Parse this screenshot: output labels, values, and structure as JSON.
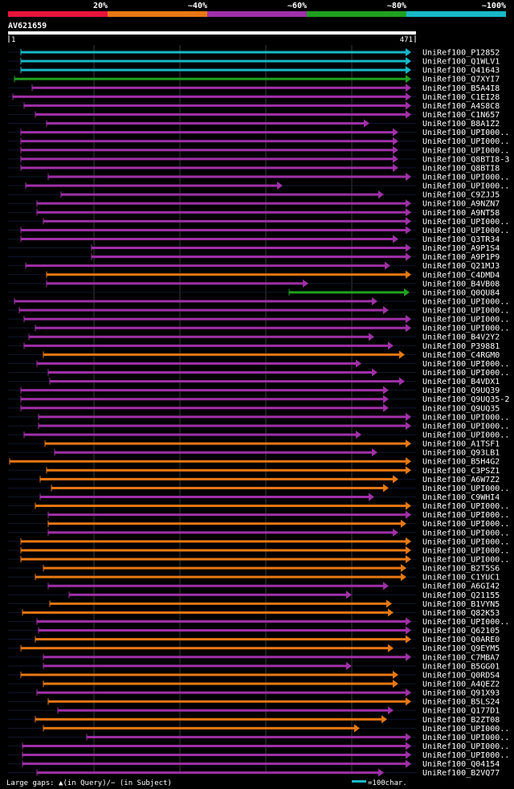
{
  "colors": {
    "bg": "#000000",
    "red": "#e8143c",
    "orange": "#e87814",
    "purple": "#a030a8",
    "green": "#20a020",
    "cyan": "#18b8c8",
    "grid": "#3a3a3a"
  },
  "scale_labels": [
    "20%",
    "~40%",
    "~60%",
    "~80%",
    "~100%"
  ],
  "query_name": "AV621659",
  "ruler": {
    "start": "1",
    "end": "471"
  },
  "footer": {
    "legend": "Large gaps: ▲(in Query)/− (in Subject)",
    "scale_note": "=100char."
  },
  "hits": [
    {
      "name": "UniRef100_P12852",
      "color": "cyan",
      "start": 26,
      "end": 512
    },
    {
      "name": "UniRef100_Q1WLV1",
      "color": "cyan",
      "start": 26,
      "end": 512
    },
    {
      "name": "UniRef100_Q41643",
      "color": "cyan",
      "start": 26,
      "end": 512
    },
    {
      "name": "UniRef100_Q7XYI7",
      "color": "green",
      "start": 18,
      "end": 512
    },
    {
      "name": "UniRef100_B5A4I8",
      "color": "purple",
      "start": 40,
      "end": 512
    },
    {
      "name": "UniRef100_C1EI28",
      "color": "purple",
      "start": 16,
      "end": 512
    },
    {
      "name": "UniRef100_A4S8C8",
      "color": "purple",
      "start": 30,
      "end": 512
    },
    {
      "name": "UniRef100_C1N657",
      "color": "purple",
      "start": 44,
      "end": 512
    },
    {
      "name": "UniRef100_B8A1Z2",
      "color": "purple",
      "start": 58,
      "end": 460
    },
    {
      "name": "UniRef100_UPI000..",
      "color": "purple",
      "start": 26,
      "end": 496
    },
    {
      "name": "UniRef100_UPI000..",
      "color": "purple",
      "start": 26,
      "end": 496
    },
    {
      "name": "UniRef100_UPI000..",
      "color": "purple",
      "start": 26,
      "end": 496
    },
    {
      "name": "UniRef100_Q8BTI8-3",
      "color": "purple",
      "start": 26,
      "end": 496
    },
    {
      "name": "UniRef100_Q8BTI8",
      "color": "purple",
      "start": 26,
      "end": 496
    },
    {
      "name": "UniRef100_UPI000..",
      "color": "purple",
      "start": 60,
      "end": 512
    },
    {
      "name": "UniRef100_UPI000..",
      "color": "purple",
      "start": 32,
      "end": 352
    },
    {
      "name": "UniRef100_C9ZJJ5",
      "color": "purple",
      "start": 76,
      "end": 478
    },
    {
      "name": "UniRef100_A9NZN7",
      "color": "purple",
      "start": 46,
      "end": 512
    },
    {
      "name": "UniRef100_A9NT58",
      "color": "purple",
      "start": 46,
      "end": 512
    },
    {
      "name": "UniRef100_UPI000..",
      "color": "purple",
      "start": 54,
      "end": 512
    },
    {
      "name": "UniRef100_UPI000..",
      "color": "purple",
      "start": 26,
      "end": 512
    },
    {
      "name": "UniRef100_Q3TR34",
      "color": "purple",
      "start": 26,
      "end": 496
    },
    {
      "name": "UniRef100_A9P1S4",
      "color": "purple",
      "start": 114,
      "end": 512
    },
    {
      "name": "UniRef100_A9P1P9",
      "color": "purple",
      "start": 114,
      "end": 512
    },
    {
      "name": "UniRef100_Q21MJ3",
      "color": "purple",
      "start": 32,
      "end": 486
    },
    {
      "name": "UniRef100_C4DMD4",
      "color": "orange",
      "start": 58,
      "end": 512
    },
    {
      "name": "UniRef100_B4VB08",
      "color": "purple",
      "start": 58,
      "end": 384
    },
    {
      "name": "UniRef100_Q0QU84",
      "color": "green",
      "start": 360,
      "end": 510
    },
    {
      "name": "UniRef100_UPI000..",
      "color": "purple",
      "start": 18,
      "end": 470
    },
    {
      "name": "UniRef100_UPI000..",
      "color": "purple",
      "start": 24,
      "end": 484
    },
    {
      "name": "UniRef100_UPI000..",
      "color": "purple",
      "start": 30,
      "end": 512
    },
    {
      "name": "UniRef100_UPI000..",
      "color": "purple",
      "start": 44,
      "end": 512
    },
    {
      "name": "UniRef100_B4V2Y2",
      "color": "purple",
      "start": 36,
      "end": 466
    },
    {
      "name": "UniRef100_P39881",
      "color": "purple",
      "start": 30,
      "end": 490
    },
    {
      "name": "UniRef100_C4RGM0",
      "color": "orange",
      "start": 54,
      "end": 504
    },
    {
      "name": "UniRef100_UPI000..",
      "color": "purple",
      "start": 46,
      "end": 450
    },
    {
      "name": "UniRef100_UPI000..",
      "color": "purple",
      "start": 60,
      "end": 470
    },
    {
      "name": "UniRef100_B4VDX1",
      "color": "purple",
      "start": 62,
      "end": 504
    },
    {
      "name": "UniRef100_Q9UQ39",
      "color": "purple",
      "start": 26,
      "end": 484
    },
    {
      "name": "UniRef100_Q9UQ35-2",
      "color": "purple",
      "start": 26,
      "end": 484
    },
    {
      "name": "UniRef100_Q9UQ35",
      "color": "purple",
      "start": 26,
      "end": 484
    },
    {
      "name": "UniRef100_UPI000..",
      "color": "purple",
      "start": 48,
      "end": 512
    },
    {
      "name": "UniRef100_UPI000..",
      "color": "purple",
      "start": 48,
      "end": 512
    },
    {
      "name": "UniRef100_UPI000..",
      "color": "purple",
      "start": 30,
      "end": 450
    },
    {
      "name": "UniRef100_A1TSF1",
      "color": "orange",
      "start": 56,
      "end": 512
    },
    {
      "name": "UniRef100_Q93LB1",
      "color": "purple",
      "start": 68,
      "end": 470
    },
    {
      "name": "UniRef100_B5H4G2",
      "color": "orange",
      "start": 12,
      "end": 512
    },
    {
      "name": "UniRef100_C3PSZ1",
      "color": "orange",
      "start": 58,
      "end": 512
    },
    {
      "name": "UniRef100_A6W7Z2",
      "color": "orange",
      "start": 50,
      "end": 496
    },
    {
      "name": "UniRef100_UPI000..",
      "color": "orange",
      "start": 64,
      "end": 484
    },
    {
      "name": "UniRef100_C9WHI4",
      "color": "purple",
      "start": 50,
      "end": 466
    },
    {
      "name": "UniRef100_UPI000..",
      "color": "orange",
      "start": 44,
      "end": 512
    },
    {
      "name": "UniRef100_UPI000..",
      "color": "purple",
      "start": 60,
      "end": 512
    },
    {
      "name": "UniRef100_UPI000..",
      "color": "orange",
      "start": 60,
      "end": 506
    },
    {
      "name": "UniRef100_UPI000..",
      "color": "purple",
      "start": 60,
      "end": 496
    },
    {
      "name": "UniRef100_UPI000..",
      "color": "orange",
      "start": 26,
      "end": 512
    },
    {
      "name": "UniRef100_UPI000..",
      "color": "orange",
      "start": 26,
      "end": 512
    },
    {
      "name": "UniRef100_UPI000..",
      "color": "orange",
      "start": 26,
      "end": 512
    },
    {
      "name": "UniRef100_B2T5S6",
      "color": "orange",
      "start": 54,
      "end": 506
    },
    {
      "name": "UniRef100_C1YUC1",
      "color": "orange",
      "start": 44,
      "end": 506
    },
    {
      "name": "UniRef100_A6GI42",
      "color": "purple",
      "start": 60,
      "end": 484
    },
    {
      "name": "UniRef100_Q21155",
      "color": "purple",
      "start": 86,
      "end": 438
    },
    {
      "name": "UniRef100_B1VYN5",
      "color": "orange",
      "start": 62,
      "end": 488
    },
    {
      "name": "UniRef100_Q82K53",
      "color": "orange",
      "start": 28,
      "end": 490
    },
    {
      "name": "UniRef100_UPI000..",
      "color": "purple",
      "start": 46,
      "end": 512
    },
    {
      "name": "UniRef100_Q62105",
      "color": "purple",
      "start": 48,
      "end": 512
    },
    {
      "name": "UniRef100_Q0ARE0",
      "color": "orange",
      "start": 44,
      "end": 512
    },
    {
      "name": "UniRef100_Q9EYM5",
      "color": "orange",
      "start": 26,
      "end": 490
    },
    {
      "name": "UniRef100_C7MBA7",
      "color": "purple",
      "start": 54,
      "end": 512
    },
    {
      "name": "UniRef100_B5GG01",
      "color": "purple",
      "start": 54,
      "end": 438
    },
    {
      "name": "UniRef100_Q0RDS4",
      "color": "orange",
      "start": 26,
      "end": 496
    },
    {
      "name": "UniRef100_A4QEZ2",
      "color": "orange",
      "start": 54,
      "end": 496
    },
    {
      "name": "UniRef100_Q91X93",
      "color": "purple",
      "start": 46,
      "end": 512
    },
    {
      "name": "UniRef100_B5LS24",
      "color": "orange",
      "start": 60,
      "end": 512
    },
    {
      "name": "UniRef100_Q177D1",
      "color": "purple",
      "start": 72,
      "end": 490
    },
    {
      "name": "UniRef100_B2ZT08",
      "color": "orange",
      "start": 44,
      "end": 482
    },
    {
      "name": "UniRef100_UPI000..",
      "color": "orange",
      "start": 54,
      "end": 448
    },
    {
      "name": "UniRef100_UPI000..",
      "color": "purple",
      "start": 108,
      "end": 512
    },
    {
      "name": "UniRef100_UPI000..",
      "color": "purple",
      "start": 28,
      "end": 512
    },
    {
      "name": "UniRef100_UPI000..",
      "color": "purple",
      "start": 28,
      "end": 512
    },
    {
      "name": "UniRef100_Q04154",
      "color": "purple",
      "start": 28,
      "end": 512
    },
    {
      "name": "UniRef100_B2VQ77",
      "color": "purple",
      "start": 46,
      "end": 478
    }
  ]
}
